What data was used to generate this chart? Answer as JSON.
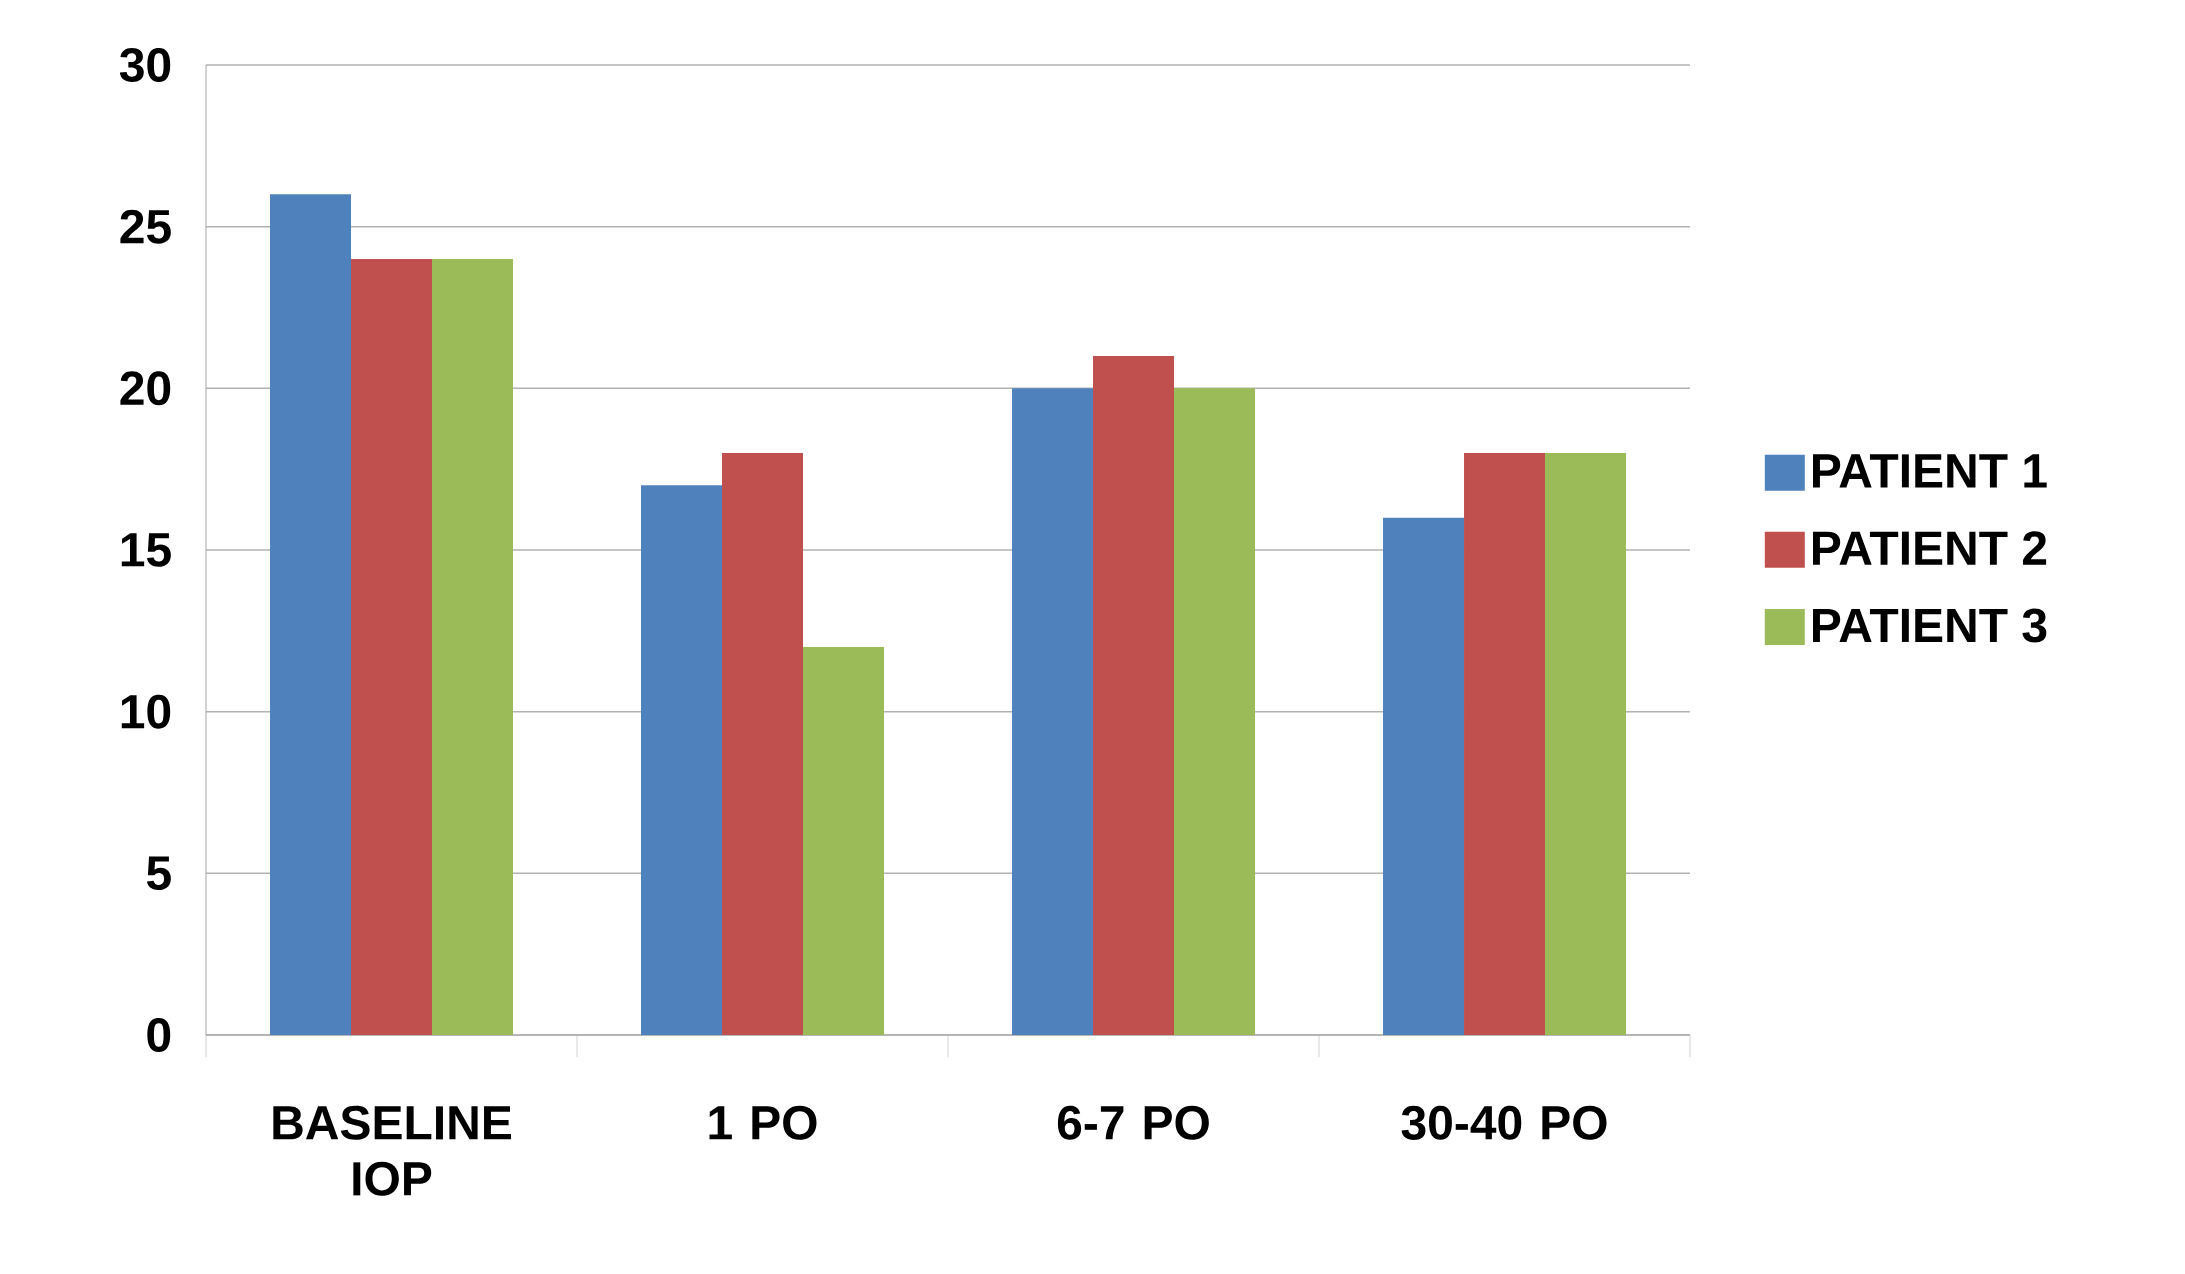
{
  "chart_data": {
    "type": "bar",
    "categories": [
      "BASELINE IOP",
      "1 PO",
      "6-7 PO",
      "30-40 PO"
    ],
    "series": [
      {
        "name": "PATIENT 1",
        "color": "#4f81bd",
        "values": [
          26,
          17,
          20,
          16
        ]
      },
      {
        "name": "PATIENT 2",
        "color": "#c0504d",
        "values": [
          24,
          18,
          21,
          18
        ]
      },
      {
        "name": "PATIENT 3",
        "color": "#9bbb59",
        "values": [
          24,
          12,
          20,
          18
        ]
      }
    ],
    "ylim": [
      0,
      30
    ],
    "yticks": [
      0,
      5,
      10,
      15,
      20,
      25,
      30
    ],
    "grid": "y",
    "legend": "right"
  }
}
